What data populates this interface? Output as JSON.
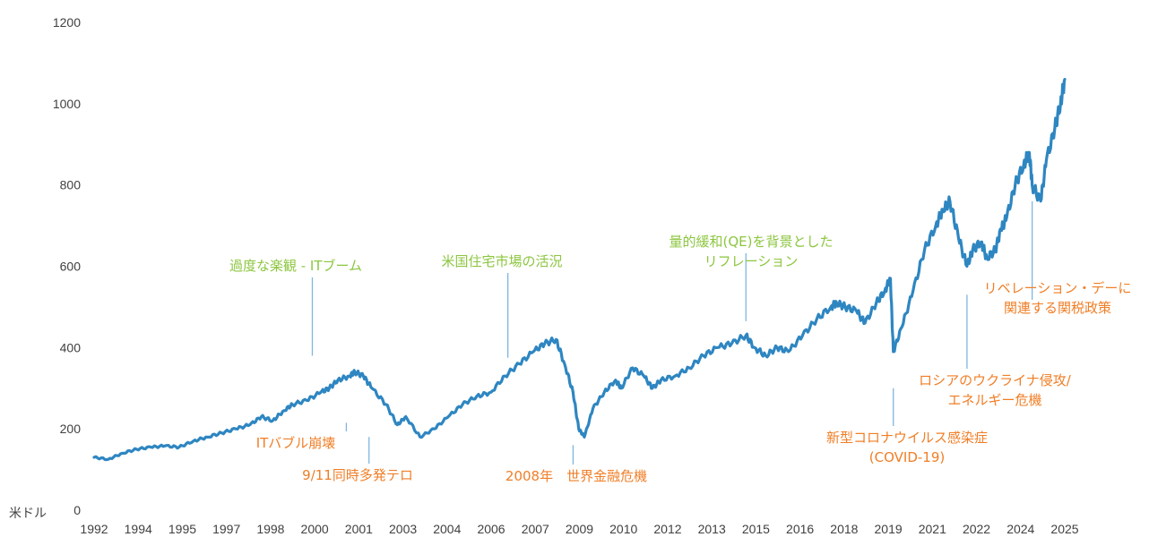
{
  "chart_data": {
    "type": "line",
    "ylabel": "米ドル",
    "ylim": [
      0,
      1200
    ],
    "yticks": [
      0,
      200,
      400,
      600,
      800,
      1000,
      1200
    ],
    "xticks": [
      "1992",
      "1994",
      "1995",
      "1997",
      "1998",
      "2000",
      "2001",
      "2003",
      "2004",
      "2006",
      "2007",
      "2009",
      "2010",
      "2012",
      "2013",
      "2015",
      "2016",
      "2018",
      "2019",
      "2021",
      "2022",
      "2024",
      "2025"
    ],
    "grid": false,
    "line_color": "#2E86C1",
    "series": [
      {
        "x": [
          1992.0,
          1992.5,
          1993.0,
          1993.5,
          1994.0,
          1994.5,
          1995.0,
          1995.5,
          1996.0,
          1996.5,
          1997.0,
          1997.5,
          1997.9,
          1998.3,
          1998.7,
          1999.0,
          1999.5,
          2000.0,
          2000.3,
          2000.6,
          2001.0,
          2001.2,
          2001.5,
          2001.8,
          2002.3,
          2002.7,
          2003.0,
          2003.5,
          2004.0,
          2004.5,
          2005.0,
          2005.5,
          2006.0,
          2006.5,
          2007.0,
          2007.5,
          2007.9,
          2008.3,
          2008.6,
          2008.9,
          2009.1,
          2009.3,
          2009.6,
          2010.0,
          2010.4,
          2010.6,
          2011.0,
          2011.4,
          2011.7,
          2012.0,
          2012.5,
          2013.0,
          2013.5,
          2014.0,
          2014.5,
          2015.0,
          2015.3,
          2015.7,
          2016.1,
          2016.5,
          2017.0,
          2017.5,
          2018.0,
          2018.2,
          2018.5,
          2018.9,
          2019.2,
          2019.6,
          2019.9,
          2020.1,
          2020.2,
          2020.5,
          2020.9,
          2021.3,
          2021.7,
          2021.95,
          2022.2,
          2022.5,
          2022.8,
          2023.0,
          2023.3,
          2023.5,
          2023.8,
          2024.0,
          2024.2,
          2024.5,
          2024.8,
          2025.0,
          2025.1,
          2025.4,
          2025.6,
          2025.9,
          2026.1,
          2026.25
        ],
        "y": [
          130,
          125,
          140,
          150,
          155,
          158,
          155,
          170,
          180,
          190,
          200,
          210,
          230,
          220,
          245,
          260,
          270,
          290,
          300,
          320,
          330,
          340,
          330,
          300,
          260,
          210,
          230,
          180,
          200,
          230,
          260,
          280,
          290,
          330,
          360,
          390,
          410,
          420,
          360,
          290,
          200,
          180,
          250,
          290,
          320,
          300,
          350,
          330,
          300,
          320,
          330,
          350,
          380,
          400,
          410,
          430,
          400,
          380,
          400,
          390,
          430,
          470,
          500,
          510,
          500,
          490,
          460,
          510,
          540,
          570,
          390,
          450,
          540,
          640,
          700,
          740,
          760,
          670,
          600,
          640,
          660,
          620,
          640,
          690,
          720,
          800,
          850,
          880,
          800,
          760,
          860,
          940,
          1000,
          1060
        ]
      }
    ],
    "annotations": [
      {
        "text": "過度な楽観 - ITブーム",
        "x": 1999.7,
        "y_end": 380,
        "color": "#8CC63F"
      },
      {
        "text": "ITバブル崩壊",
        "x": 2000.9,
        "y_end": 215,
        "color": "#F07E26"
      },
      {
        "text": "9/11同時多発テロ",
        "x": 2001.7,
        "y_end": 180,
        "color": "#F07E26"
      },
      {
        "text": "米国住宅市場の活況",
        "x": 2006.6,
        "y_end": 375,
        "color": "#8CC63F"
      },
      {
        "text": "2008年　世界金融危機",
        "x": 2008.9,
        "y_end": 160,
        "color": "#F07E26"
      },
      {
        "text": "量的緩和(QE)を背景とした",
        "text2": "リフレーション",
        "x": 2015.0,
        "y_end": 465,
        "color": "#8CC63F"
      },
      {
        "text": "新型コロナウイルス感染症",
        "text2": "(COVID-19)",
        "x": 2020.2,
        "y_end": 300,
        "color": "#F07E26"
      },
      {
        "text": "ロシアのウクライナ侵攻/",
        "text2": "エネルギー危機",
        "x": 2022.8,
        "y_end": 530,
        "color": "#F07E26"
      },
      {
        "text": "リベレーション・デーに",
        "text2": "関連する関税政策",
        "x": 2025.1,
        "y_end": 760,
        "color": "#F07E26"
      }
    ]
  }
}
